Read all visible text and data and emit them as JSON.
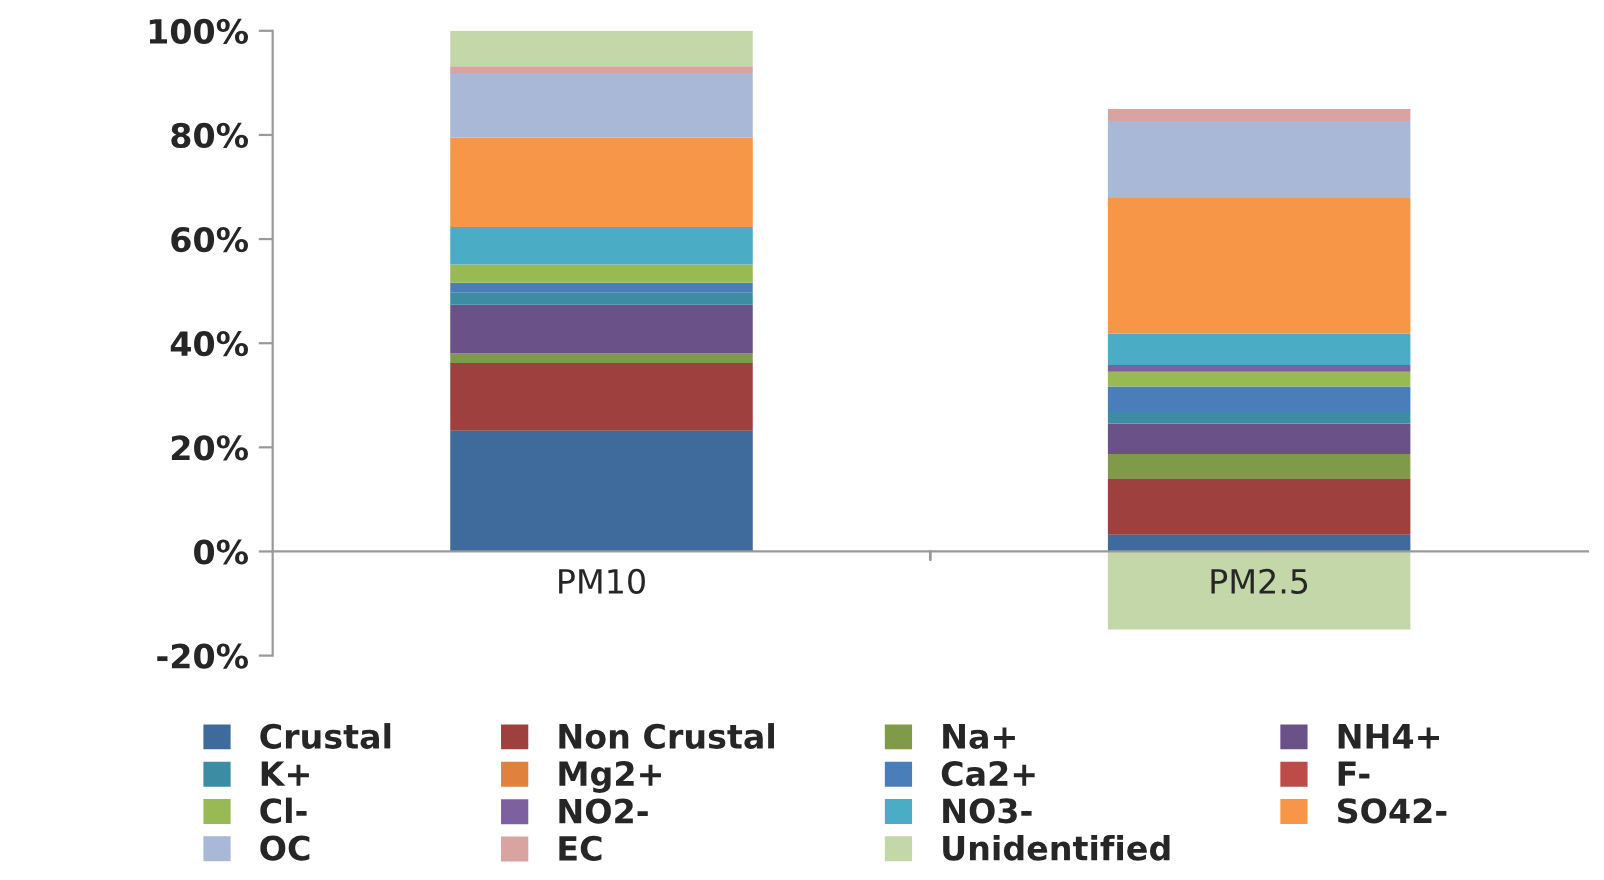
{
  "chart_data": {
    "type": "bar",
    "stacked": true,
    "categories": [
      "PM10",
      "PM2.5"
    ],
    "series": [
      {
        "name": "Crustal",
        "color": "#3f6a9c",
        "values": [
          23.2,
          3.2
        ]
      },
      {
        "name": "Non Crustal",
        "color": "#9e413e",
        "values": [
          13.0,
          10.7
        ]
      },
      {
        "name": "Na+",
        "color": "#7f9a48",
        "values": [
          1.8,
          4.8
        ]
      },
      {
        "name": "NH4+",
        "color": "#6a5187",
        "values": [
          9.4,
          5.9
        ]
      },
      {
        "name": "K+",
        "color": "#3c8da3",
        "values": [
          2.3,
          2.2
        ]
      },
      {
        "name": "Mg2+",
        "color": "#e0823e",
        "values": [
          0,
          0
        ]
      },
      {
        "name": "Ca2+",
        "color": "#4a7ebb",
        "values": [
          1.9,
          4.9
        ]
      },
      {
        "name": "F-",
        "color": "#be4b48",
        "values": [
          0,
          0
        ]
      },
      {
        "name": "Cl-",
        "color": "#98b954",
        "values": [
          3.5,
          2.8
        ]
      },
      {
        "name": "NO2-",
        "color": "#7d60a0",
        "values": [
          0,
          1.3
        ]
      },
      {
        "name": "NO3-",
        "color": "#4bacc6",
        "values": [
          7.2,
          6.0
        ]
      },
      {
        "name": "SO42-",
        "color": "#f79646",
        "values": [
          17.2,
          26.1
        ]
      },
      {
        "name": "OC",
        "color": "#a9b8d6",
        "values": [
          12.4,
          14.8
        ]
      },
      {
        "name": "EC",
        "color": "#d9a3a2",
        "values": [
          1.3,
          2.3
        ]
      },
      {
        "name": "Unidentified",
        "color": "#c4d7a9",
        "values": [
          6.8,
          -15.0
        ]
      }
    ],
    "ylim": [
      -20,
      100
    ],
    "yticks": [
      {
        "value": -20,
        "label": "-20%"
      },
      {
        "value": 0,
        "label": "0%"
      },
      {
        "value": 20,
        "label": "20%"
      },
      {
        "value": 40,
        "label": "40%"
      },
      {
        "value": 60,
        "label": "60%"
      },
      {
        "value": 80,
        "label": "80%"
      },
      {
        "value": 100,
        "label": "100%"
      }
    ],
    "grid": false,
    "legend": "bottom"
  }
}
